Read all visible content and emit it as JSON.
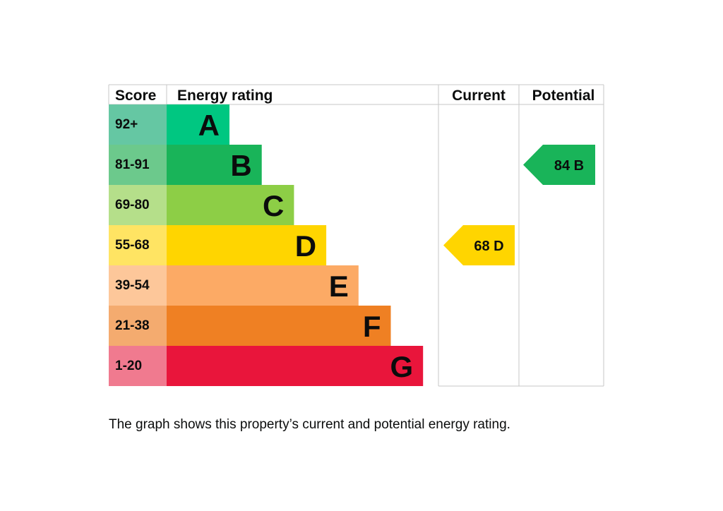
{
  "chart_data": {
    "type": "bar",
    "headers": {
      "score": "Score",
      "rating": "Energy rating",
      "current": "Current",
      "potential": "Potential"
    },
    "bands": [
      {
        "score": "92+",
        "letter": "A",
        "color": "#00c781",
        "score_bg": "#65c7a3"
      },
      {
        "score": "81-91",
        "letter": "B",
        "color": "#19b459",
        "score_bg": "#6cc98c"
      },
      {
        "score": "69-80",
        "letter": "C",
        "color": "#8dce46",
        "score_bg": "#b5df8a"
      },
      {
        "score": "55-68",
        "letter": "D",
        "color": "#ffd500",
        "score_bg": "#ffe463"
      },
      {
        "score": "39-54",
        "letter": "E",
        "color": "#fcaa65",
        "score_bg": "#fdc79a"
      },
      {
        "score": "21-38",
        "letter": "F",
        "color": "#ef8023",
        "score_bg": "#f4ab6f"
      },
      {
        "score": "1-20",
        "letter": "G",
        "color": "#e9153b",
        "score_bg": "#f07a8f"
      }
    ],
    "current": {
      "value": 68,
      "letter": "D",
      "label": "68  D",
      "color": "#ffd500"
    },
    "potential": {
      "value": 84,
      "letter": "B",
      "label": "84  B",
      "color": "#19b459"
    }
  },
  "caption": "The graph shows this property’s current and potential energy rating."
}
